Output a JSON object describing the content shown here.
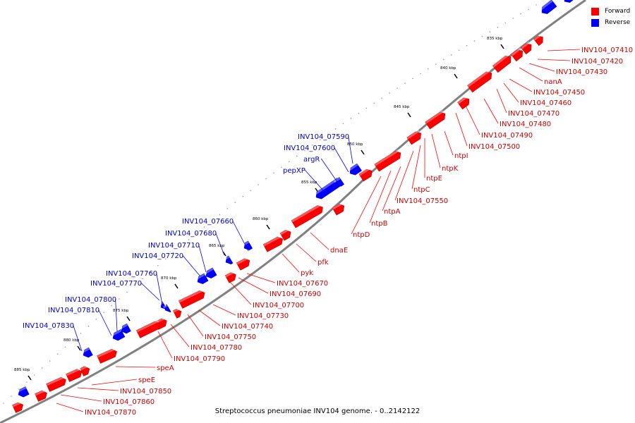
{
  "title": "Streptococcus pneumoniae INV104 genome. - 0..2142122",
  "legend": [
    {
      "label": "Forward",
      "color": "#ff0000"
    },
    {
      "label": "Reverse",
      "color": "#0000ff"
    }
  ],
  "colors": {
    "forward": "#ff0000",
    "reverse": "#0000ff",
    "backbone": "#808080"
  },
  "ticks": [
    "835 kbp",
    "840 kbp",
    "845 kbp",
    "850 kbp",
    "855 kbp",
    "860 kbp",
    "865 kbp",
    "870 kbp",
    "875 kbp",
    "880 kbp",
    "885 kbp"
  ],
  "forward_labels": [
    "INV104_07410",
    "INV104_07420",
    "INV104_07430",
    "nanA",
    "INV104_07450",
    "INV104_07460",
    "INV104_07470",
    "INV104_07480",
    "INV104_07490",
    "INV104_07500",
    "ntpI",
    "ntpK",
    "ntpE",
    "ntpC",
    "INV104_07550",
    "ntpA",
    "ntpB",
    "ntpD",
    "dnaE",
    "pfk",
    "pyk",
    "INV104_07670",
    "INV104_07690",
    "INV104_07700",
    "INV104_07730",
    "INV104_07740",
    "INV104_07750",
    "INV104_07780",
    "INV104_07790",
    "speA",
    "speE",
    "INV104_07850",
    "INV104_07860",
    "INV104_07870"
  ],
  "reverse_labels": [
    "INV104_07590",
    "INV104_07600",
    "argR",
    "pepXP",
    "INV104_07660",
    "INV104_07680",
    "INV104_07710",
    "INV104_07720",
    "INV104_07760",
    "INV104_07770",
    "INV104_07800",
    "INV104_07810",
    "INV104_07830"
  ]
}
